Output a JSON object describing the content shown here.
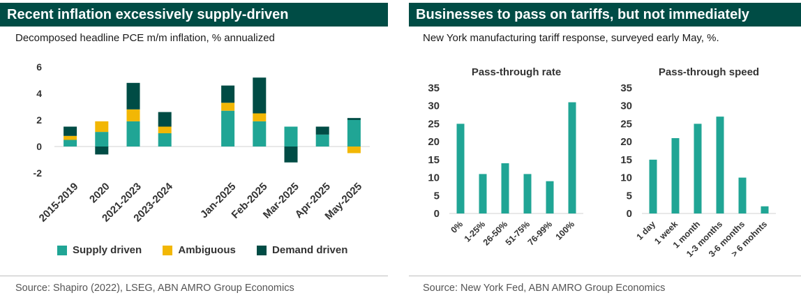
{
  "left": {
    "title": "Recent inflation excessively supply-driven",
    "subtitle": "Decomposed headline PCE m/m inflation, % annualized",
    "source": "Source: Shapiro (2022), LSEG, ABN AMRO Group Economics",
    "legend": [
      "Supply driven",
      "Ambiguous",
      "Demand driven"
    ]
  },
  "right": {
    "title": "Businesses to pass on tariffs, but not immediately",
    "subtitle": "New York manufacturing tariff response, surveyed early May, %.",
    "source": "Source: New York Fed, ABN AMRO Group Economics"
  },
  "colors": {
    "supply": "#20a595",
    "ambiguous": "#f2b705",
    "demand": "#004c45",
    "title_bg": "#004c45"
  },
  "chart_data": [
    {
      "type": "bar",
      "stacked": true,
      "categories": [
        "2015-2019",
        "2020",
        "2021-2023",
        "2023-2024",
        "",
        "Jan-2025",
        "Feb-2025",
        "Mar-2025",
        "Apr-2025",
        "May-2025"
      ],
      "series": [
        {
          "name": "Supply driven",
          "values": [
            0.5,
            1.1,
            1.9,
            1.0,
            null,
            2.7,
            1.9,
            1.5,
            0.9,
            2.0
          ]
        },
        {
          "name": "Ambiguous",
          "values": [
            0.3,
            0.8,
            0.9,
            0.5,
            null,
            0.6,
            0.6,
            0.0,
            0.0,
            -0.5
          ]
        },
        {
          "name": "Demand driven",
          "values": [
            0.7,
            -0.6,
            2.0,
            1.1,
            null,
            1.3,
            2.7,
            -1.2,
            0.6,
            0.15
          ]
        }
      ],
      "yticks": [
        -2,
        0,
        2,
        4,
        6
      ],
      "ylim": [
        -2,
        6
      ],
      "legend_position": "bottom"
    },
    {
      "type": "bar",
      "title": "Pass-through rate",
      "categories": [
        "0%",
        "1-25%",
        "26-50%",
        "51-75%",
        "76-99%",
        "100%"
      ],
      "values": [
        25,
        11,
        14,
        11,
        9,
        31
      ],
      "yticks": [
        0,
        5,
        10,
        15,
        20,
        25,
        30,
        35
      ],
      "ylim": [
        0,
        35
      ]
    },
    {
      "type": "bar",
      "title": "Pass-through speed",
      "categories": [
        "1 day",
        "1 week",
        "1 month",
        "1-3 months",
        "3-6 months",
        "> 6 mohnts"
      ],
      "values": [
        15,
        21,
        25,
        27,
        10,
        2
      ],
      "yticks": [
        0,
        5,
        10,
        15,
        20,
        25,
        30,
        35
      ],
      "ylim": [
        0,
        35
      ]
    }
  ]
}
